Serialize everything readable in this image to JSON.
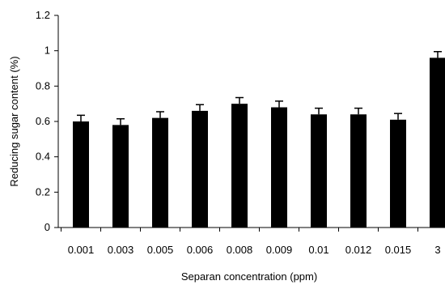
{
  "chart_data": {
    "type": "bar",
    "title": "",
    "xlabel": "Separan concentration (ppm)",
    "ylabel": "Reducing sugar content (%)",
    "categories": [
      "0.001",
      "0.003",
      "0.005",
      "0.006",
      "0.008",
      "0.009",
      "0.01",
      "0.012",
      "0.015",
      "3"
    ],
    "values": [
      0.6,
      0.58,
      0.62,
      0.66,
      0.7,
      0.68,
      0.64,
      0.64,
      0.61,
      0.96
    ],
    "error_bars": [
      0.035,
      0.035,
      0.035,
      0.035,
      0.035,
      0.035,
      0.035,
      0.035,
      0.035,
      0.035
    ],
    "ylim": [
      0,
      1.2
    ],
    "yticks": [
      "0",
      "0.2",
      "0.4",
      "0.6",
      "0.8",
      "1",
      "1.2"
    ],
    "grid": false,
    "bar_color": "#000000"
  }
}
